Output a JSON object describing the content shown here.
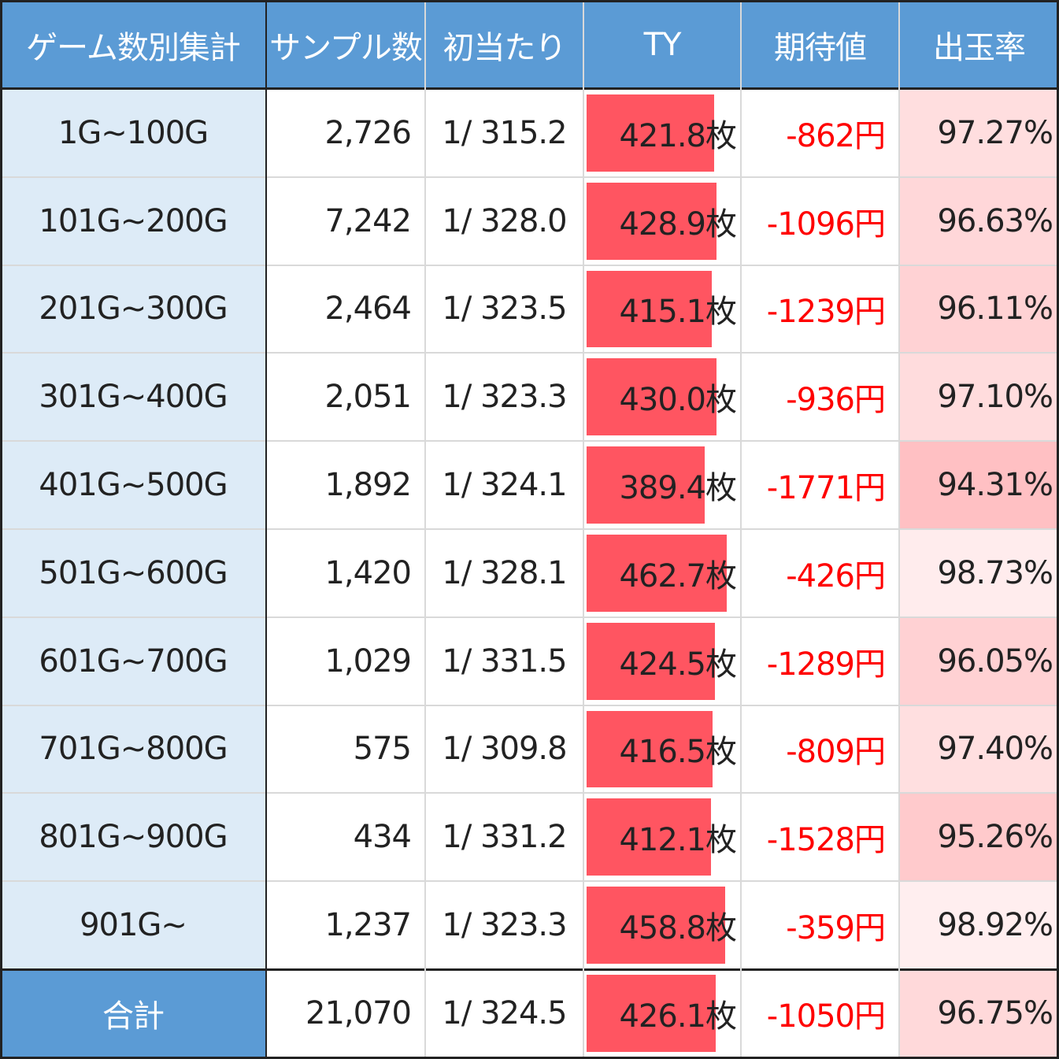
{
  "headers": [
    "ゲーム数別集計",
    "サンプル数",
    "初当たり",
    "TY",
    "期待値",
    "出玉率"
  ],
  "ty_scale_max": 500,
  "colors": {
    "header_bg": "#5b9bd5",
    "label_bg": "#ddebf7",
    "bar": "#ff5561",
    "negative_text": "#ff0000",
    "rate_tint": "#f4a6a6"
  },
  "rows": [
    {
      "label": "1G~100G",
      "samples": "2,726",
      "hit": "1/ 315.2",
      "ty": 421.8,
      "ty_text": "421.8枚",
      "ev": "-862円",
      "rate": "97.27%",
      "rate_value": 97.27
    },
    {
      "label": "101G~200G",
      "samples": "7,242",
      "hit": "1/ 328.0",
      "ty": 428.9,
      "ty_text": "428.9枚",
      "ev": "-1096円",
      "rate": "96.63%",
      "rate_value": 96.63
    },
    {
      "label": "201G~300G",
      "samples": "2,464",
      "hit": "1/ 323.5",
      "ty": 415.1,
      "ty_text": "415.1枚",
      "ev": "-1239円",
      "rate": "96.11%",
      "rate_value": 96.11
    },
    {
      "label": "301G~400G",
      "samples": "2,051",
      "hit": "1/ 323.3",
      "ty": 430.0,
      "ty_text": "430.0枚",
      "ev": "-936円",
      "rate": "97.10%",
      "rate_value": 97.1
    },
    {
      "label": "401G~500G",
      "samples": "1,892",
      "hit": "1/ 324.1",
      "ty": 389.4,
      "ty_text": "389.4枚",
      "ev": "-1771円",
      "rate": "94.31%",
      "rate_value": 94.31
    },
    {
      "label": "501G~600G",
      "samples": "1,420",
      "hit": "1/ 328.1",
      "ty": 462.7,
      "ty_text": "462.7枚",
      "ev": "-426円",
      "rate": "98.73%",
      "rate_value": 98.73
    },
    {
      "label": "601G~700G",
      "samples": "1,029",
      "hit": "1/ 331.5",
      "ty": 424.5,
      "ty_text": "424.5枚",
      "ev": "-1289円",
      "rate": "96.05%",
      "rate_value": 96.05
    },
    {
      "label": "701G~800G",
      "samples": "575",
      "hit": "1/ 309.8",
      "ty": 416.5,
      "ty_text": "416.5枚",
      "ev": "-809円",
      "rate": "97.40%",
      "rate_value": 97.4
    },
    {
      "label": "801G~900G",
      "samples": "434",
      "hit": "1/ 331.2",
      "ty": 412.1,
      "ty_text": "412.1枚",
      "ev": "-1528円",
      "rate": "95.26%",
      "rate_value": 95.26
    },
    {
      "label": "901G~",
      "samples": "1,237",
      "hit": "1/ 323.3",
      "ty": 458.8,
      "ty_text": "458.8枚",
      "ev": "-359円",
      "rate": "98.92%",
      "rate_value": 98.92
    }
  ],
  "total": {
    "label": "合計",
    "samples": "21,070",
    "hit": "1/ 324.5",
    "ty": 426.1,
    "ty_text": "426.1枚",
    "ev": "-1050円",
    "rate": "96.75%",
    "rate_value": 96.75
  }
}
